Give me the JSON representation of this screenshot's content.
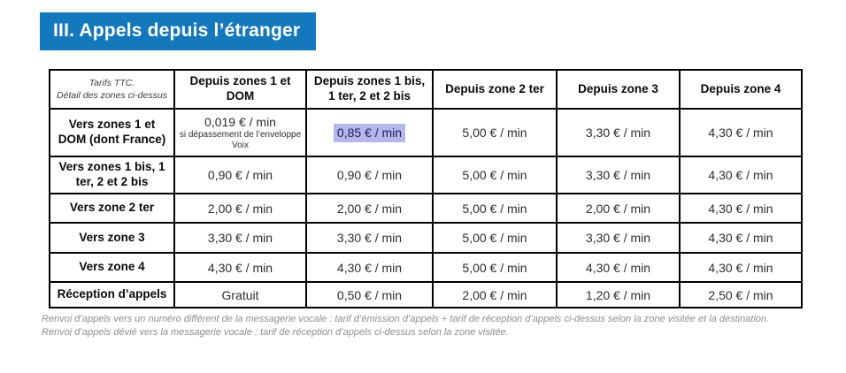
{
  "title": "III. Appels depuis l’étranger",
  "colors": {
    "banner_bg": "#1478bd",
    "banner_text": "#ffffff",
    "table_border": "#000000",
    "highlight_bg": "#b6b6ea",
    "footnote_gray": "#8e8e8e"
  },
  "table": {
    "corner": {
      "line1": "Tarifs TTC.",
      "line2": "Détail des zones ci-dessus"
    },
    "columns": [
      "Depuis zones 1 et DOM",
      "Depuis zones 1 bis, 1 ter, 2 et 2 bis",
      "Depuis zone 2 ter",
      "Depuis zone 3",
      "Depuis zone 4"
    ],
    "rows": [
      {
        "label": "Vers zones 1 et DOM (dont France)",
        "cells": [
          "0,019 € / min",
          "0,85 € / min",
          "5,00 € / min",
          "3,30 € / min",
          "4,30 € / min"
        ],
        "note_cell": 0,
        "note": "si dépassement de l’enveloppe Voix",
        "highlight_cell": 1
      },
      {
        "label": "Vers zones 1 bis, 1 ter, 2 et 2 bis",
        "cells": [
          "0,90 € / min",
          "0,90 € / min",
          "5,00 € / min",
          "3,30 € / min",
          "4,30 € / min"
        ]
      },
      {
        "label": "Vers zone 2 ter",
        "cells": [
          "2,00 € / min",
          "2,00 € / min",
          "5,00 € / min",
          "2,00 € / min",
          "4,30 € / min"
        ]
      },
      {
        "label": "Vers zone 3",
        "cells": [
          "3,30 € / min",
          "3,30 € / min",
          "5,00 € / min",
          "3,30 € / min",
          "4,30 € / min"
        ]
      },
      {
        "label": "Vers zone 4",
        "cells": [
          "4,30 € / min",
          "4,30 € / min",
          "5,00 € / min",
          "4,30 € / min",
          "4,30 € / min"
        ]
      },
      {
        "label": "Réception d’appels",
        "cells": [
          "Gratuit",
          "0,50 € / min",
          "2,00 € / min",
          "1,20 € / min",
          "2,50 € / min"
        ]
      }
    ]
  },
  "footnotes": [
    "Renvoi d’appels vers un numéro différent de la messagerie vocale : tarif d’émission d’appels + tarif de réception d’appels ci-dessus selon la zone visitée et la destination.",
    "Renvoi d’appels dévié vers la messagerie vocale : tarif de réception d’appels ci-dessus selon la zone visitée."
  ]
}
